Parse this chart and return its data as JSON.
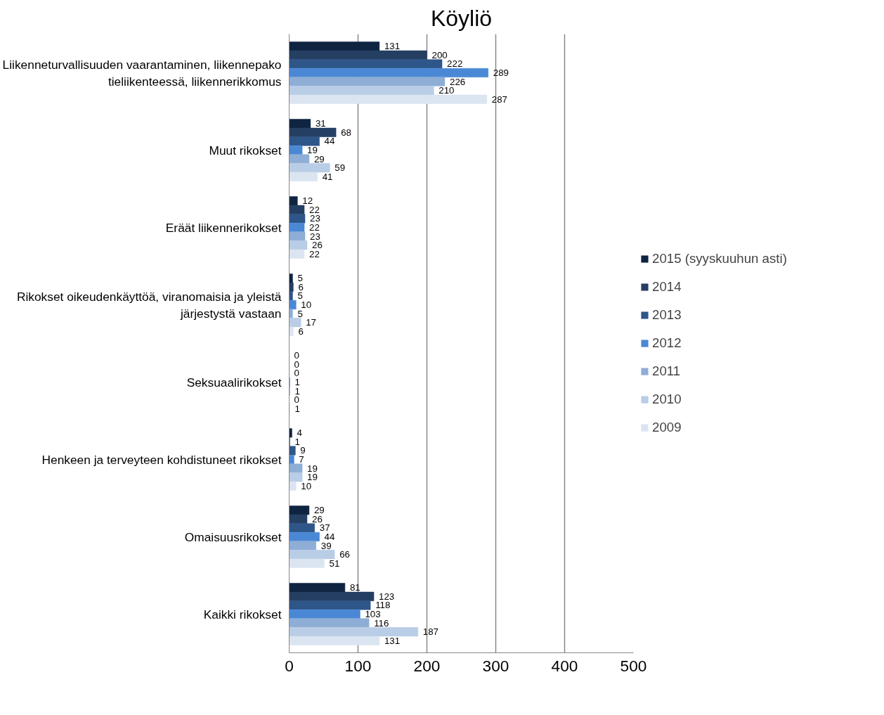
{
  "chart_data": {
    "type": "bar",
    "orientation": "horizontal",
    "title": "Köyliö",
    "categories": [
      "Liikenneturvallisuuden vaarantaminen, liikennepako tieliikenteessä, liikennerikkomus",
      "Muut rikokset",
      "Eräät liikennerikokset",
      "Rikokset oikeudenkäyttöä, viranomaisia ja yleistä järjestystä vastaan",
      "Seksuaalirikokset",
      "Henkeen ja terveyteen kohdistuneet rikokset",
      "Omaisuusrikokset",
      "Kaikki rikokset"
    ],
    "series": [
      {
        "name": "2015 (syyskuuhun asti)",
        "color": "#0f2440",
        "values": [
          131,
          31,
          12,
          5,
          0,
          4,
          29,
          81
        ]
      },
      {
        "name": "2014",
        "color": "#253f63",
        "values": [
          200,
          68,
          22,
          6,
          0,
          1,
          26,
          123
        ]
      },
      {
        "name": "2013",
        "color": "#2f5689",
        "values": [
          222,
          44,
          23,
          5,
          0,
          9,
          37,
          118
        ]
      },
      {
        "name": "2012",
        "color": "#4a88d6",
        "values": [
          289,
          19,
          22,
          10,
          1,
          7,
          44,
          103
        ]
      },
      {
        "name": "2011",
        "color": "#8eaed6",
        "values": [
          226,
          29,
          23,
          5,
          1,
          19,
          39,
          116
        ]
      },
      {
        "name": "2010",
        "color": "#b9cde6",
        "values": [
          210,
          59,
          26,
          17,
          0,
          19,
          66,
          187
        ]
      },
      {
        "name": "2009",
        "color": "#dbe5f1",
        "values": [
          287,
          41,
          22,
          6,
          1,
          10,
          51,
          131
        ]
      }
    ],
    "xlim": [
      0,
      500
    ],
    "xticks": [
      0,
      100,
      200,
      300,
      400,
      500
    ],
    "grid": "x",
    "legend": "right",
    "data_labels": true
  }
}
